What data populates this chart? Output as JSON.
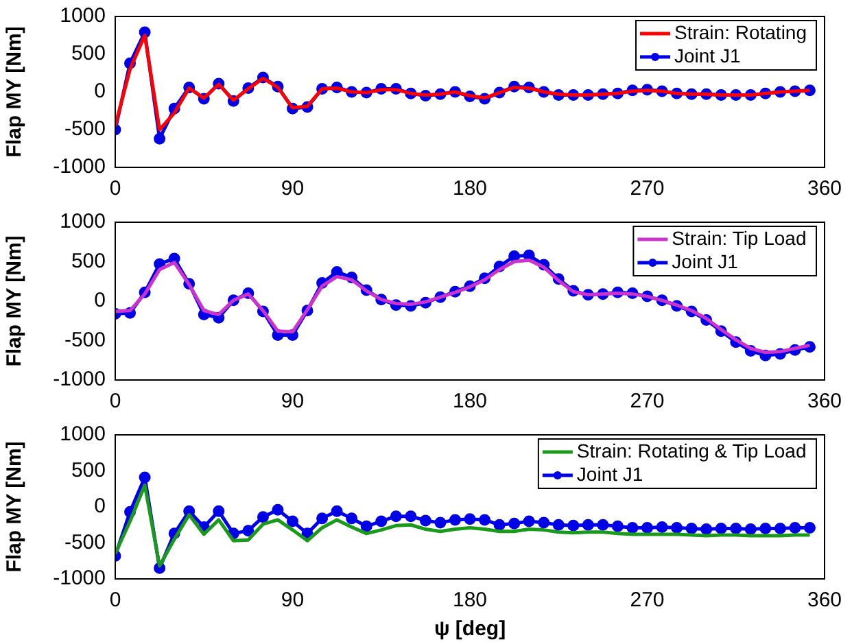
{
  "chart_data": [
    {
      "type": "line",
      "ylabel": "Flap MY [Nm]",
      "xlim": [
        0,
        360
      ],
      "xticks": [
        0,
        90,
        180,
        270,
        360
      ],
      "ylim": [
        -1000,
        1000
      ],
      "yticks": [
        -1000,
        -500,
        0,
        500,
        1000
      ],
      "grid": false,
      "legend": "top right",
      "x": [
        0,
        7.5,
        15,
        22.5,
        30,
        37.5,
        45,
        52.5,
        60,
        67.5,
        75,
        82.5,
        90,
        97.5,
        105,
        112.5,
        120,
        127.5,
        135,
        142.5,
        150,
        157.5,
        165,
        172.5,
        180,
        187.5,
        195,
        202.5,
        210,
        217.5,
        225,
        232.5,
        240,
        247.5,
        255,
        262.5,
        270,
        277.5,
        285,
        292.5,
        300,
        307.5,
        315,
        322.5,
        330,
        337.5,
        345,
        352.5
      ],
      "series": [
        {
          "name": "Strain: Rotating",
          "color": "#ff0000",
          "marker": "none",
          "values": [
            -450,
            300,
            750,
            -500,
            -280,
            50,
            -80,
            100,
            -110,
            40,
            180,
            60,
            -210,
            -190,
            40,
            50,
            0,
            -10,
            30,
            30,
            -20,
            -40,
            -30,
            0,
            -50,
            -80,
            -10,
            60,
            50,
            0,
            -30,
            -40,
            -40,
            -30,
            -20,
            10,
            20,
            10,
            -20,
            -30,
            -30,
            -40,
            -40,
            -40,
            -20,
            0,
            10,
            20
          ]
        },
        {
          "name": "Joint J1",
          "color": "#0000e6",
          "marker": "circle",
          "values": [
            -500,
            380,
            790,
            -620,
            -220,
            60,
            -90,
            110,
            -120,
            50,
            190,
            70,
            -220,
            -200,
            40,
            60,
            0,
            -10,
            40,
            40,
            -20,
            -50,
            -30,
            0,
            -60,
            -90,
            -10,
            70,
            60,
            0,
            -40,
            -40,
            -40,
            -30,
            -20,
            20,
            30,
            10,
            -20,
            -30,
            -30,
            -40,
            -40,
            -40,
            -20,
            0,
            10,
            20
          ]
        }
      ]
    },
    {
      "type": "line",
      "ylabel": "Flap MY [Nm]",
      "xlim": [
        0,
        360
      ],
      "xticks": [
        0,
        90,
        180,
        270,
        360
      ],
      "ylim": [
        -1000,
        1000
      ],
      "yticks": [
        -1000,
        -500,
        0,
        500,
        1000
      ],
      "grid": false,
      "legend": "top right",
      "x": [
        0,
        7.5,
        15,
        22.5,
        30,
        37.5,
        45,
        52.5,
        60,
        67.5,
        75,
        82.5,
        90,
        97.5,
        105,
        112.5,
        120,
        127.5,
        135,
        142.5,
        150,
        157.5,
        165,
        172.5,
        180,
        187.5,
        195,
        202.5,
        210,
        217.5,
        225,
        232.5,
        240,
        247.5,
        255,
        262.5,
        270,
        277.5,
        285,
        292.5,
        300,
        307.5,
        315,
        322.5,
        330,
        337.5,
        345,
        352.5
      ],
      "series": [
        {
          "name": "Strain: Tip Load",
          "color": "#cc33cc",
          "marker": "none",
          "values": [
            -130,
            -120,
            90,
            400,
            490,
            210,
            -120,
            -170,
            10,
            90,
            -120,
            -380,
            -390,
            -110,
            190,
            310,
            270,
            130,
            20,
            -30,
            -40,
            -10,
            50,
            110,
            180,
            270,
            400,
            500,
            520,
            430,
            260,
            120,
            80,
            90,
            100,
            90,
            60,
            10,
            -50,
            -120,
            -220,
            -360,
            -490,
            -600,
            -650,
            -640,
            -600,
            -560
          ]
        },
        {
          "name": "Joint J1",
          "color": "#0000e6",
          "marker": "circle",
          "values": [
            -160,
            -150,
            110,
            470,
            540,
            220,
            -170,
            -210,
            10,
            100,
            -130,
            -430,
            -430,
            -120,
            230,
            370,
            300,
            140,
            20,
            -50,
            -60,
            -20,
            50,
            120,
            190,
            290,
            440,
            570,
            580,
            460,
            280,
            130,
            80,
            90,
            110,
            100,
            60,
            10,
            -60,
            -130,
            -240,
            -380,
            -520,
            -630,
            -690,
            -670,
            -620,
            -580
          ]
        }
      ]
    },
    {
      "type": "line",
      "xlabel": "ψ [deg]",
      "ylabel": "Flap MY [Nm]",
      "xlim": [
        0,
        360
      ],
      "xticks": [
        0,
        90,
        180,
        270,
        360
      ],
      "ylim": [
        -1000,
        1000
      ],
      "yticks": [
        -1000,
        -500,
        0,
        500,
        1000
      ],
      "grid": false,
      "legend": "top right",
      "x": [
        0,
        7.5,
        15,
        22.5,
        30,
        37.5,
        45,
        52.5,
        60,
        67.5,
        75,
        82.5,
        90,
        97.5,
        105,
        112.5,
        120,
        127.5,
        135,
        142.5,
        150,
        157.5,
        165,
        172.5,
        180,
        187.5,
        195,
        202.5,
        210,
        217.5,
        225,
        232.5,
        240,
        247.5,
        255,
        262.5,
        270,
        277.5,
        285,
        292.5,
        300,
        307.5,
        315,
        322.5,
        330,
        337.5,
        345,
        352.5
      ],
      "series": [
        {
          "name": "Strain: Rotating & Tip Load",
          "color": "#1a9a1a",
          "marker": "none",
          "values": [
            -650,
            -200,
            300,
            -820,
            -450,
            -110,
            -380,
            -180,
            -470,
            -460,
            -240,
            -180,
            -320,
            -470,
            -290,
            -180,
            -280,
            -370,
            -320,
            -260,
            -250,
            -310,
            -340,
            -310,
            -290,
            -310,
            -340,
            -340,
            -310,
            -320,
            -350,
            -360,
            -350,
            -350,
            -370,
            -380,
            -380,
            -380,
            -380,
            -390,
            -400,
            -390,
            -390,
            -400,
            -400,
            -400,
            -390,
            -390
          ]
        },
        {
          "name": "Joint J1",
          "color": "#0000e6",
          "marker": "circle",
          "values": [
            -680,
            -70,
            410,
            -850,
            -370,
            -60,
            -280,
            -60,
            -370,
            -330,
            -140,
            -40,
            -200,
            -370,
            -160,
            -60,
            -160,
            -270,
            -200,
            -130,
            -130,
            -190,
            -220,
            -180,
            -170,
            -180,
            -250,
            -230,
            -200,
            -220,
            -250,
            -260,
            -250,
            -250,
            -270,
            -290,
            -290,
            -280,
            -290,
            -300,
            -310,
            -300,
            -300,
            -310,
            -300,
            -300,
            -290,
            -290
          ]
        }
      ]
    }
  ]
}
